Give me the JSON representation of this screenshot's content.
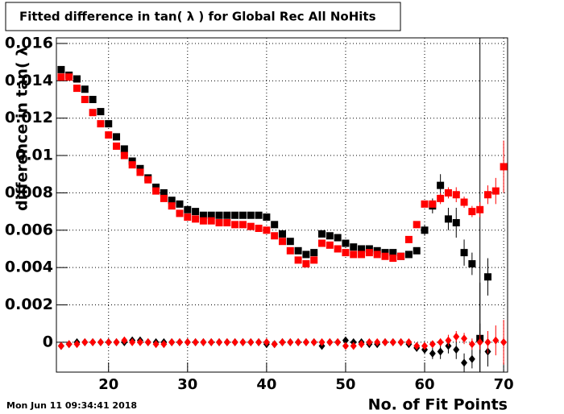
{
  "chart_data": {
    "type": "scatter",
    "title": "Fitted difference in tan( λ ) for Global Rec All NoHits",
    "y_label": "difference in tan( λ",
    "x_label": "No. of Fit Points",
    "timestamp": "Mon Jun 11 09:34:41 2018",
    "xlim": [
      13.4,
      70.5
    ],
    "ylim": [
      -0.0016,
      0.0163
    ],
    "xticks": [
      20,
      30,
      40,
      50,
      60,
      70
    ],
    "yticks": [
      0,
      0.002,
      0.004,
      0.006,
      0.008,
      0.01,
      0.012,
      0.014,
      0.016
    ],
    "grid": true,
    "vertical_line": 67,
    "series": [
      {
        "marker": "square",
        "color": "#000000",
        "x": [
          14,
          15,
          16,
          17,
          18,
          19,
          20,
          21,
          22,
          23,
          24,
          25,
          26,
          27,
          28,
          29,
          30,
          31,
          32,
          33,
          34,
          35,
          36,
          37,
          38,
          39,
          40,
          41,
          42,
          43,
          44,
          45,
          46,
          47,
          48,
          49,
          50,
          51,
          52,
          53,
          54,
          55,
          56,
          57,
          58,
          59,
          60,
          61,
          62,
          63,
          64,
          65,
          66,
          67,
          68
        ],
        "values": [
          0.0146,
          0.0143,
          0.0141,
          0.01355,
          0.013,
          0.01235,
          0.0117,
          0.011,
          0.01035,
          0.0097,
          0.0093,
          0.0088,
          0.0083,
          0.008,
          0.0076,
          0.0074,
          0.0071,
          0.007,
          0.0068,
          0.0068,
          0.0068,
          0.0068,
          0.0068,
          0.0068,
          0.0068,
          0.0068,
          0.0067,
          0.0063,
          0.0058,
          0.0054,
          0.0049,
          0.0047,
          0.0048,
          0.0058,
          0.0057,
          0.0056,
          0.0053,
          0.0051,
          0.005,
          0.005,
          0.0049,
          0.0048,
          0.0048,
          0.0046,
          0.0047,
          0.0049,
          0.006,
          0.0073,
          0.0084,
          0.0066,
          0.0064,
          0.0048,
          0.0042,
          0.0002,
          0.0035
        ],
        "errors": [
          null,
          null,
          null,
          null,
          null,
          null,
          null,
          null,
          null,
          null,
          null,
          null,
          null,
          null,
          null,
          null,
          null,
          null,
          null,
          null,
          null,
          null,
          null,
          null,
          null,
          null,
          null,
          null,
          null,
          null,
          null,
          null,
          null,
          null,
          null,
          null,
          null,
          null,
          null,
          null,
          null,
          null,
          null,
          null,
          null,
          null,
          0.0003,
          0.0004,
          0.0006,
          0.0006,
          0.0008,
          0.0007,
          0.0006,
          0.003,
          0.001
        ]
      },
      {
        "marker": "square",
        "color": "#ff0000",
        "x": [
          14,
          15,
          16,
          17,
          18,
          19,
          20,
          21,
          22,
          23,
          24,
          25,
          26,
          27,
          28,
          29,
          30,
          31,
          32,
          33,
          34,
          35,
          36,
          37,
          38,
          39,
          40,
          41,
          42,
          43,
          44,
          45,
          46,
          47,
          48,
          49,
          50,
          51,
          52,
          53,
          54,
          55,
          56,
          57,
          58,
          59,
          60,
          61,
          62,
          63,
          64,
          65,
          66,
          67,
          68,
          69,
          70
        ],
        "values": [
          0.0142,
          0.0142,
          0.0136,
          0.013,
          0.0123,
          0.0117,
          0.0111,
          0.0105,
          0.01,
          0.0095,
          0.0091,
          0.0087,
          0.0081,
          0.0077,
          0.0073,
          0.0069,
          0.0067,
          0.0066,
          0.0065,
          0.0065,
          0.0064,
          0.0064,
          0.0063,
          0.0063,
          0.0062,
          0.0061,
          0.006,
          0.0057,
          0.0054,
          0.0049,
          0.0044,
          0.0042,
          0.0044,
          0.0053,
          0.0052,
          0.005,
          0.0048,
          0.0047,
          0.0047,
          0.0048,
          0.0047,
          0.0046,
          0.0045,
          0.0046,
          0.0055,
          0.0063,
          0.0074,
          0.0074,
          0.0077,
          0.008,
          0.0079,
          0.0075,
          0.007,
          0.0071,
          0.0079,
          0.0081,
          0.0094
        ],
        "errors": [
          null,
          null,
          null,
          null,
          null,
          null,
          null,
          null,
          null,
          null,
          null,
          null,
          null,
          null,
          null,
          null,
          null,
          null,
          null,
          null,
          null,
          null,
          null,
          null,
          null,
          null,
          null,
          null,
          null,
          null,
          null,
          null,
          null,
          null,
          null,
          null,
          null,
          null,
          null,
          null,
          null,
          null,
          null,
          null,
          null,
          null,
          null,
          null,
          0.0003,
          0.0003,
          0.0004,
          0.0003,
          0.0003,
          0.0004,
          0.0005,
          0.0007,
          0.0014
        ]
      },
      {
        "marker": "diamond",
        "color": "#000000",
        "x": [
          14,
          15,
          16,
          17,
          18,
          19,
          20,
          21,
          22,
          23,
          24,
          25,
          26,
          27,
          28,
          29,
          30,
          31,
          32,
          33,
          34,
          35,
          36,
          37,
          38,
          39,
          40,
          41,
          42,
          43,
          44,
          45,
          46,
          47,
          48,
          49,
          50,
          51,
          52,
          53,
          54,
          55,
          56,
          57,
          58,
          59,
          60,
          61,
          62,
          63,
          64,
          65,
          66,
          67,
          68
        ],
        "values": [
          -0.0002,
          -0.0001,
          0,
          0,
          0,
          0,
          0,
          0,
          0,
          0.0001,
          0.0001,
          0,
          0,
          0,
          0,
          0,
          0,
          0,
          0,
          0,
          0,
          0,
          0,
          0,
          0,
          0,
          -0.0001,
          -0.0001,
          0,
          0,
          0,
          0,
          0,
          -0.0002,
          0,
          0,
          0.0001,
          0,
          0,
          -0.0001,
          -0.0001,
          0,
          0,
          0,
          -0.0001,
          -0.0003,
          -0.0004,
          -0.0006,
          -0.0005,
          -0.0002,
          -0.0004,
          -0.0011,
          -0.0009,
          0.0002,
          -0.0005
        ],
        "errors": [
          null,
          null,
          null,
          null,
          null,
          null,
          null,
          null,
          null,
          null,
          null,
          null,
          null,
          null,
          null,
          null,
          null,
          null,
          null,
          null,
          null,
          null,
          null,
          null,
          null,
          null,
          null,
          null,
          null,
          null,
          null,
          null,
          null,
          null,
          null,
          null,
          null,
          null,
          null,
          null,
          null,
          null,
          null,
          null,
          null,
          0.0002,
          0.0002,
          0.0003,
          0.0004,
          0.0004,
          0.0005,
          0.0005,
          0.0005,
          0.0008,
          0.0008
        ]
      },
      {
        "marker": "diamond",
        "color": "#ff0000",
        "x": [
          14,
          15,
          16,
          17,
          18,
          19,
          20,
          21,
          22,
          23,
          24,
          25,
          26,
          27,
          28,
          29,
          30,
          31,
          32,
          33,
          34,
          35,
          36,
          37,
          38,
          39,
          40,
          41,
          42,
          43,
          44,
          45,
          46,
          47,
          48,
          49,
          50,
          51,
          52,
          53,
          54,
          55,
          56,
          57,
          58,
          59,
          60,
          61,
          62,
          63,
          64,
          65,
          66,
          67,
          68,
          69,
          70
        ],
        "values": [
          -0.0002,
          -0.0001,
          -0.0001,
          0,
          0,
          0,
          0,
          0,
          0.0001,
          0,
          0,
          0,
          -0.0001,
          -0.0001,
          0,
          0,
          0,
          0,
          0,
          0,
          0,
          0,
          0,
          0,
          0,
          0,
          0,
          -0.0001,
          0,
          0,
          0,
          0,
          0,
          0,
          0,
          0,
          -0.0002,
          -0.0002,
          -0.0001,
          0,
          0,
          0,
          0,
          0,
          0,
          -0.0002,
          -0.0002,
          -0.0001,
          0,
          0.0001,
          0.0003,
          0.0002,
          -0.0001,
          0,
          0,
          0.0001,
          0
        ],
        "errors": [
          null,
          null,
          null,
          null,
          null,
          null,
          null,
          null,
          null,
          null,
          null,
          null,
          null,
          null,
          null,
          null,
          null,
          null,
          null,
          null,
          null,
          null,
          null,
          null,
          null,
          null,
          null,
          null,
          null,
          null,
          null,
          null,
          null,
          null,
          null,
          null,
          null,
          null,
          null,
          null,
          null,
          null,
          null,
          null,
          null,
          null,
          null,
          null,
          0.0002,
          0.0003,
          0.0003,
          0.0003,
          0.0003,
          0.0004,
          0.0006,
          0.0008,
          0.0012
        ]
      }
    ]
  }
}
